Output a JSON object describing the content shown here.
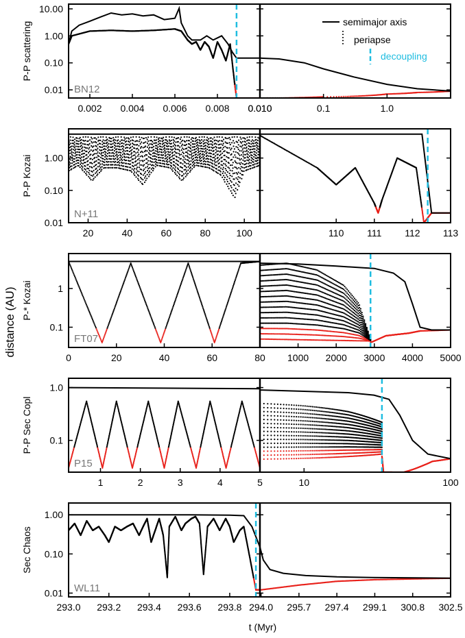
{
  "figure": {
    "ylabel": "distance (AU)",
    "xlabel": "t (Myr)"
  },
  "legend": {
    "items": [
      {
        "label": "semimajor axis",
        "style": "solid",
        "color": "#000000"
      },
      {
        "label": "periapse",
        "style": "dotted",
        "color": "#000000"
      },
      {
        "label": "decoupling",
        "style": "dashed",
        "color": "#1fbde0"
      }
    ]
  },
  "colors": {
    "semimajor": "#000000",
    "periapse": "#000000",
    "periapse_close": "#e8201a",
    "decoupling": "#1fbde0"
  },
  "chart_data": [
    {
      "type": "line",
      "ylabel": "P-P scattering",
      "tag": "BN12",
      "yscale": "log",
      "ylim": [
        0.005,
        15
      ],
      "yticks": [
        "0.01",
        "0.10",
        "1.00",
        "10.00"
      ],
      "left": {
        "xlim": [
          0.001,
          0.01
        ],
        "xticks": [
          "0.002",
          "0.004",
          "0.006",
          "0.008",
          "0.010"
        ],
        "decoupling": 0.0089,
        "semimajor": [
          [
            0.001,
            0.5
          ],
          [
            0.00115,
            1.5
          ],
          [
            0.0015,
            2.5
          ],
          [
            0.002,
            3.5
          ],
          [
            0.0025,
            5.0
          ],
          [
            0.003,
            7.0
          ],
          [
            0.0035,
            6.0
          ],
          [
            0.004,
            6.5
          ],
          [
            0.0045,
            5.5
          ],
          [
            0.005,
            6.0
          ],
          [
            0.0055,
            4.0
          ],
          [
            0.006,
            4.5
          ],
          [
            0.0062,
            10.5
          ],
          [
            0.0063,
            3.0
          ],
          [
            0.0066,
            1.0
          ],
          [
            0.0068,
            0.7
          ],
          [
            0.0072,
            0.7
          ],
          [
            0.0075,
            1.0
          ],
          [
            0.0078,
            0.7
          ],
          [
            0.0082,
            1.0
          ],
          [
            0.0085,
            0.5
          ],
          [
            0.0087,
            0.25
          ],
          [
            0.0089,
            0.15
          ],
          [
            0.01,
            0.15
          ]
        ],
        "periapse": [
          [
            0.001,
            0.5
          ],
          [
            0.00115,
            1.0
          ],
          [
            0.002,
            1.5
          ],
          [
            0.003,
            1.6
          ],
          [
            0.004,
            1.5
          ],
          [
            0.005,
            1.6
          ],
          [
            0.006,
            1.8
          ],
          [
            0.0063,
            1.5
          ],
          [
            0.0066,
            0.7
          ],
          [
            0.0068,
            0.5
          ],
          [
            0.007,
            0.6
          ],
          [
            0.0072,
            0.3
          ],
          [
            0.0074,
            0.6
          ],
          [
            0.0076,
            0.4
          ],
          [
            0.0078,
            0.15
          ],
          [
            0.008,
            0.6
          ],
          [
            0.0082,
            0.3
          ],
          [
            0.0084,
            0.12
          ],
          [
            0.0086,
            0.5
          ],
          [
            0.0088,
            0.02
          ],
          [
            0.0089,
            0.005
          ],
          [
            0.01,
            0.005
          ]
        ]
      },
      "right": {
        "xscale": "log",
        "xlim": [
          0.01,
          10
        ],
        "xticks": [
          "0.010",
          "0.1",
          "1.0"
        ],
        "semimajor": [
          [
            0.01,
            0.15
          ],
          [
            0.02,
            0.14
          ],
          [
            0.05,
            0.1
          ],
          [
            0.1,
            0.06
          ],
          [
            0.3,
            0.03
          ],
          [
            1,
            0.016
          ],
          [
            3,
            0.011
          ],
          [
            10,
            0.009
          ]
        ],
        "periapse": [
          [
            0.01,
            0.005
          ],
          [
            0.1,
            0.0055
          ],
          [
            1,
            0.007
          ],
          [
            3,
            0.008
          ],
          [
            10,
            0.009
          ]
        ]
      }
    },
    {
      "type": "line",
      "ylabel": "P-P Kozai",
      "tag": "N+11",
      "yscale": "log",
      "ylim": [
        0.01,
        8
      ],
      "yticks": [
        "0.01",
        "0.10",
        "1.00"
      ],
      "left": {
        "xlim": [
          10,
          108
        ],
        "xticks": [
          "20",
          "40",
          "60",
          "80",
          "100"
        ],
        "semimajor": [
          [
            10,
            5.5
          ],
          [
            108,
            5.5
          ]
        ],
        "periapse_band": {
          "max": 4.5,
          "min_envelope": [
            [
              10,
              0.4
            ],
            [
              15,
              0.6
            ],
            [
              22,
              0.2
            ],
            [
              28,
              0.5
            ],
            [
              35,
              0.5
            ],
            [
              42,
              0.4
            ],
            [
              48,
              0.15
            ],
            [
              55,
              0.6
            ],
            [
              62,
              0.5
            ],
            [
              68,
              0.2
            ],
            [
              75,
              0.6
            ],
            [
              82,
              0.5
            ],
            [
              88,
              0.3
            ],
            [
              95,
              0.06
            ],
            [
              100,
              0.4
            ],
            [
              108,
              0.6
            ]
          ]
        }
      },
      "right": {
        "xlim": [
          108,
          113
        ],
        "xticks": [
          "110",
          "111",
          "112",
          "113"
        ],
        "decoupling": 112.4,
        "semimajor": [
          [
            108,
            5.5
          ],
          [
            112.25,
            5.5
          ],
          [
            112.5,
            0.02
          ],
          [
            113,
            0.02
          ]
        ],
        "periapse": [
          [
            108,
            5.0
          ],
          [
            109.5,
            0.5
          ],
          [
            110,
            0.15
          ],
          [
            110.5,
            0.5
          ],
          [
            111,
            0.04
          ],
          [
            111.1,
            0.02
          ],
          [
            111.2,
            0.05
          ],
          [
            111.6,
            1.0
          ],
          [
            112.1,
            0.5
          ],
          [
            112.3,
            0.01
          ],
          [
            112.5,
            0.02
          ],
          [
            113,
            0.02
          ]
        ]
      }
    },
    {
      "type": "line",
      "ylabel": "P-* Kozai",
      "tag": "FT07",
      "yscale": "log",
      "ylim": [
        0.03,
        8
      ],
      "yticks": [
        "0.1",
        "1"
      ],
      "left": {
        "xlim": [
          0,
          80
        ],
        "xticks": [
          "0",
          "20",
          "40",
          "60",
          "80"
        ],
        "semimajor": [
          [
            0,
            5
          ],
          [
            80,
            5
          ]
        ],
        "periapse": [
          [
            0,
            5
          ],
          [
            14,
            0.04
          ],
          [
            26,
            4.5
          ],
          [
            38.5,
            0.04
          ],
          [
            50,
            4.5
          ],
          [
            61,
            0.04
          ],
          [
            72,
            4.5
          ],
          [
            80,
            5
          ]
        ]
      },
      "right": {
        "xlim": [
          0,
          5000
        ],
        "xticks": [
          "1000",
          "2000",
          "3000",
          "4000",
          "5000"
        ],
        "decoupling": 2900,
        "semimajor": [
          [
            0,
            4.5
          ],
          [
            1000,
            4.3
          ],
          [
            2000,
            3.8
          ],
          [
            3000,
            3.3
          ],
          [
            3500,
            2.5
          ],
          [
            3800,
            1.5
          ],
          [
            4000,
            0.4
          ],
          [
            4200,
            0.1
          ],
          [
            4500,
            0.085
          ],
          [
            5000,
            0.085
          ]
        ],
        "periapse_envelope": [
          [
            0,
            4
          ],
          [
            700,
            4.5
          ],
          [
            1500,
            3.0
          ],
          [
            2200,
            1.2
          ],
          [
            2600,
            0.4
          ],
          [
            2900,
            0.05
          ]
        ],
        "periapse_floor": [
          [
            0,
            0.045
          ],
          [
            2900,
            0.04
          ],
          [
            3300,
            0.06
          ],
          [
            3600,
            0.065
          ],
          [
            3900,
            0.07
          ],
          [
            4200,
            0.08
          ],
          [
            5000,
            0.085
          ]
        ]
      }
    },
    {
      "type": "line",
      "ylabel": "P-P Sec Copl",
      "tag": "P15",
      "yscale": "log",
      "ylim": [
        0.025,
        1.5
      ],
      "yticks": [
        "0.1",
        "1.0"
      ],
      "left": {
        "xlim": [
          0.2,
          5
        ],
        "xticks": [
          "1",
          "2",
          "3",
          "4",
          "5"
        ],
        "semimajor": [
          [
            0.2,
            1.0
          ],
          [
            5,
            0.95
          ]
        ],
        "periapse": [
          [
            0.2,
            0.03
          ],
          [
            0.65,
            0.55
          ],
          [
            1.05,
            0.03
          ],
          [
            1.4,
            0.55
          ],
          [
            1.8,
            0.03
          ],
          [
            2.2,
            0.55
          ],
          [
            2.6,
            0.03
          ],
          [
            2.95,
            0.55
          ],
          [
            3.4,
            0.03
          ],
          [
            3.75,
            0.55
          ],
          [
            4.15,
            0.03
          ],
          [
            4.55,
            0.55
          ],
          [
            5,
            0.03
          ]
        ]
      },
      "right": {
        "xscale": "log",
        "xlim": [
          5,
          100
        ],
        "xticks": [
          "10",
          "100"
        ],
        "decoupling": 34,
        "semimajor": [
          [
            5,
            0.9
          ],
          [
            10,
            0.85
          ],
          [
            20,
            0.8
          ],
          [
            30,
            0.72
          ],
          [
            38,
            0.6
          ],
          [
            45,
            0.3
          ],
          [
            55,
            0.1
          ],
          [
            70,
            0.055
          ],
          [
            100,
            0.045
          ]
        ],
        "periapse_envelope": [
          [
            5,
            0.5
          ],
          [
            10,
            0.45
          ],
          [
            20,
            0.35
          ],
          [
            30,
            0.25
          ],
          [
            34,
            0.22
          ]
        ],
        "periapse_floor": [
          [
            5,
            0.04
          ],
          [
            20,
            0.045
          ],
          [
            34,
            0.05
          ],
          [
            35,
            0.022
          ],
          [
            40,
            0.022
          ],
          [
            55,
            0.028
          ],
          [
            75,
            0.04
          ],
          [
            100,
            0.045
          ]
        ]
      }
    },
    {
      "type": "line",
      "ylabel": "Sec Chaos",
      "tag": "WL11",
      "yscale": "log",
      "ylim": [
        0.008,
        2
      ],
      "yticks": [
        "0.01",
        "0.10",
        "1.00"
      ],
      "left": {
        "xlim": [
          293.0,
          293.95
        ],
        "xticks": [
          "293.0",
          "293.2",
          "293.4",
          "293.6",
          "293.8"
        ],
        "decoupling": 293.93,
        "semimajor": [
          [
            293.0,
            1.0
          ],
          [
            293.2,
            1.0
          ],
          [
            293.4,
            1.0
          ],
          [
            293.6,
            1.0
          ],
          [
            293.8,
            0.98
          ],
          [
            293.87,
            0.95
          ],
          [
            293.91,
            0.5
          ],
          [
            293.95,
            0.15
          ]
        ],
        "periapse": [
          [
            293.0,
            0.4
          ],
          [
            293.03,
            0.6
          ],
          [
            293.06,
            0.3
          ],
          [
            293.09,
            0.7
          ],
          [
            293.12,
            0.4
          ],
          [
            293.15,
            0.5
          ],
          [
            293.18,
            0.3
          ],
          [
            293.2,
            0.2
          ],
          [
            293.23,
            0.5
          ],
          [
            293.26,
            0.4
          ],
          [
            293.29,
            0.5
          ],
          [
            293.32,
            0.6
          ],
          [
            293.35,
            0.3
          ],
          [
            293.37,
            0.5
          ],
          [
            293.39,
            0.8
          ],
          [
            293.41,
            0.2
          ],
          [
            293.43,
            0.4
          ],
          [
            293.45,
            0.8
          ],
          [
            293.47,
            0.3
          ],
          [
            293.49,
            0.025
          ],
          [
            293.5,
            0.5
          ],
          [
            293.53,
            0.9
          ],
          [
            293.56,
            0.4
          ],
          [
            293.58,
            0.6
          ],
          [
            293.61,
            0.8
          ],
          [
            293.63,
            0.9
          ],
          [
            293.65,
            0.6
          ],
          [
            293.67,
            0.03
          ],
          [
            293.69,
            0.5
          ],
          [
            293.72,
            0.8
          ],
          [
            293.75,
            0.4
          ],
          [
            293.78,
            0.8
          ],
          [
            293.8,
            0.5
          ],
          [
            293.82,
            0.2
          ],
          [
            293.85,
            0.4
          ],
          [
            293.87,
            0.5
          ],
          [
            293.9,
            0.08
          ],
          [
            293.93,
            0.012
          ],
          [
            293.95,
            0.012
          ]
        ]
      },
      "right": {
        "xlim": [
          293.95,
          302.5
        ],
        "xticks": [
          "294.0",
          "295.7",
          "297.4",
          "299.1",
          "300.8",
          "302.5"
        ],
        "semimajor": [
          [
            293.95,
            0.15
          ],
          [
            294.1,
            0.07
          ],
          [
            294.4,
            0.04
          ],
          [
            295,
            0.032
          ],
          [
            296,
            0.028
          ],
          [
            297.4,
            0.026
          ],
          [
            299,
            0.025
          ],
          [
            302.5,
            0.024
          ]
        ],
        "periapse": [
          [
            293.95,
            0.012
          ],
          [
            295.7,
            0.016
          ],
          [
            297.4,
            0.02
          ],
          [
            299.1,
            0.022
          ],
          [
            300.8,
            0.023
          ],
          [
            302.5,
            0.024
          ]
        ]
      }
    }
  ]
}
